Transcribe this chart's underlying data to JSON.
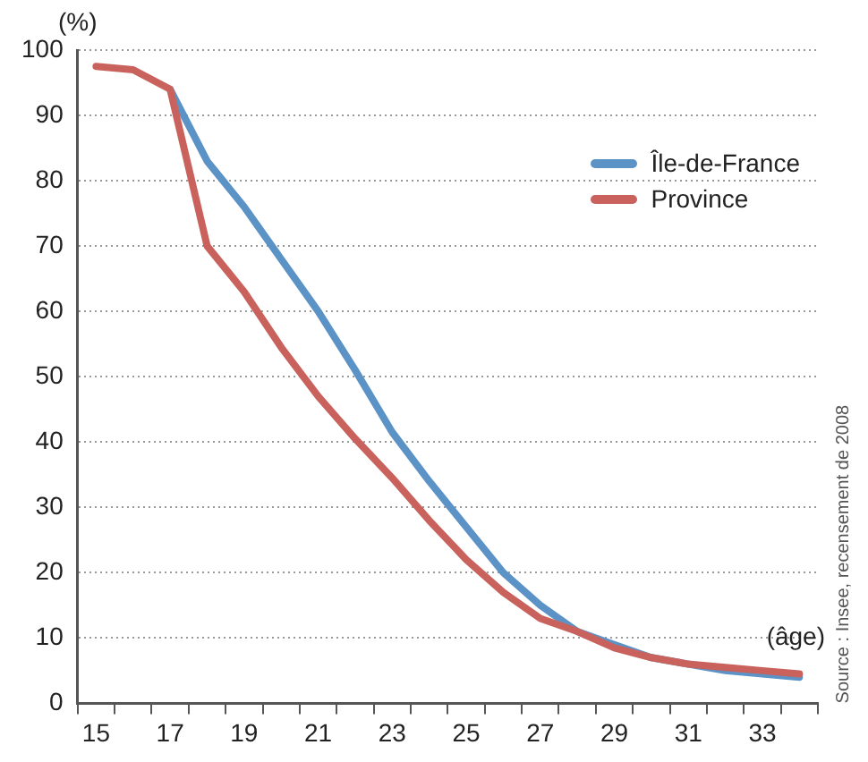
{
  "chart_data": {
    "type": "line",
    "ylabel": "(%)",
    "xlabel": "(âge)",
    "annotations": [
      "Source : Insee, recensement de 2008"
    ],
    "categories": [
      "15",
      null,
      "17",
      null,
      "19",
      null,
      "21",
      null,
      "23",
      null,
      "25",
      null,
      "27",
      null,
      "29",
      null,
      "31",
      null,
      "33",
      null
    ],
    "series": [
      {
        "name": "Île-de-France",
        "color": "#5b93c7",
        "values": [
          null,
          null,
          94,
          83,
          76,
          68,
          60,
          51,
          41.5,
          34,
          27,
          20,
          15,
          11,
          9,
          7,
          6,
          5,
          4.5,
          4
        ]
      },
      {
        "name": "Province",
        "color": "#c9625c",
        "values": [
          97.5,
          97,
          94,
          70,
          63,
          54.5,
          47,
          40.5,
          34.5,
          28,
          22,
          17,
          13,
          11,
          8.5,
          7,
          6,
          5.5,
          5,
          4.5
        ]
      }
    ],
    "ylim": [
      0,
      100
    ],
    "yticks": [
      0,
      10,
      20,
      30,
      40,
      50,
      60,
      70,
      80,
      90,
      100
    ],
    "grid": "y",
    "legend": "top right",
    "marker": "none",
    "line_style": "solid"
  }
}
